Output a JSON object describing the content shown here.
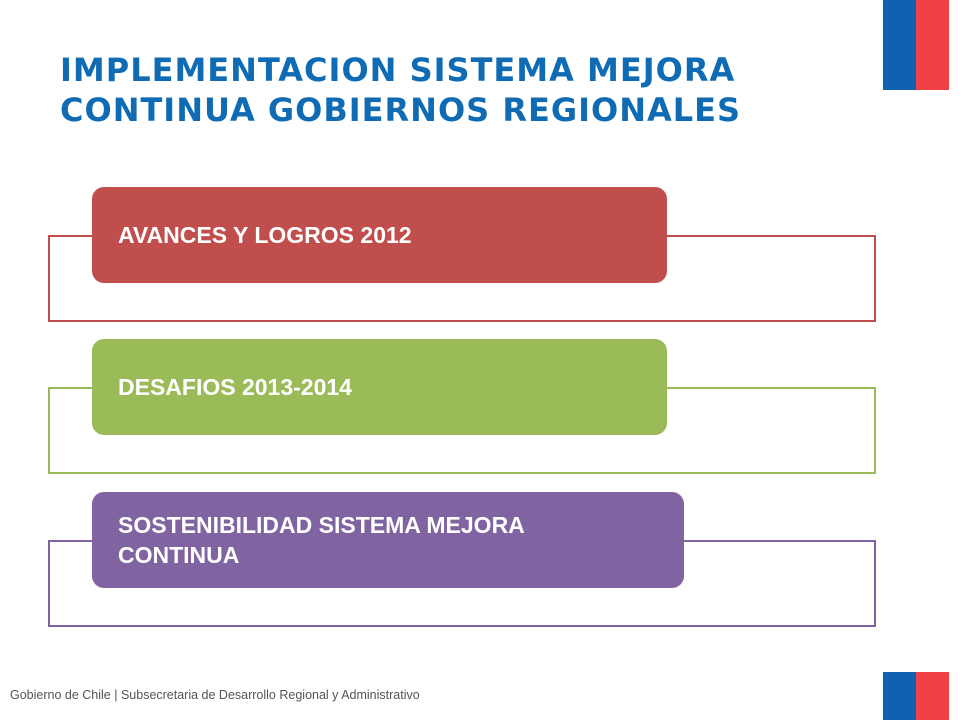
{
  "slide": {
    "title": "IMPLEMENTACION SISTEMA MEJORA\nCONTINUA GOBIERNOS REGIONALES",
    "title_color": "#0f6bb4",
    "items": [
      {
        "label": "AVANCES Y LOGROS 2012",
        "fill_color": "#bf4e4d",
        "border_color": "#bf4e4d"
      },
      {
        "label": "DESAFIOS 2013-2014",
        "fill_color": "#9bbb59",
        "border_color": "#9bbb59"
      },
      {
        "label": "SOSTENIBILIDAD SISTEMA MEJORA\nCONTINUA",
        "fill_color": "#8064a2",
        "border_color": "#8064a2"
      }
    ],
    "footer": "Gobierno de Chile | Subsecretaria de Desarrollo Regional y Administrativo",
    "flag": {
      "blue": "#1061b0",
      "red": "#ef4045"
    }
  }
}
